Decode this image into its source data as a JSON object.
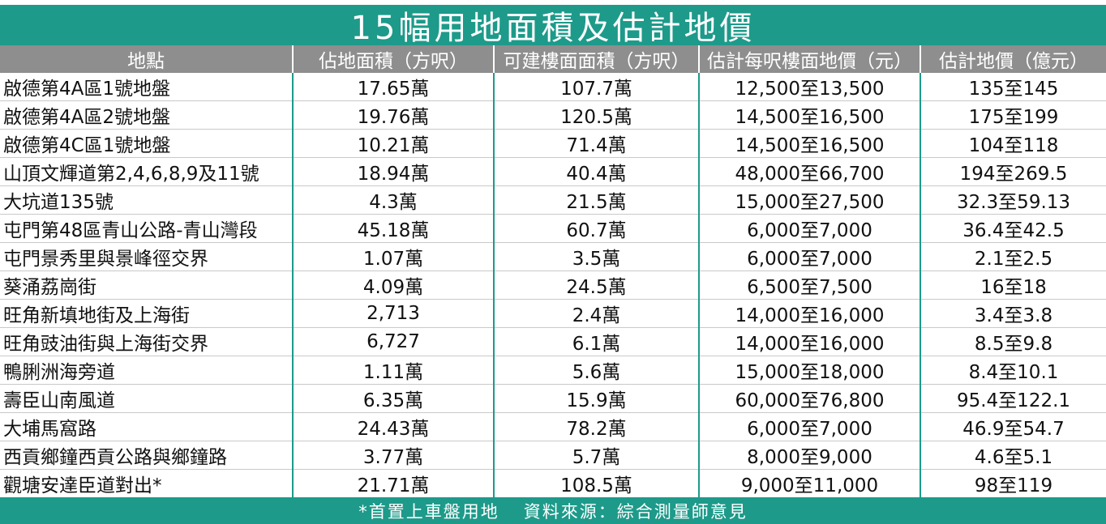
{
  "title": "15幅用地面積及估計地價",
  "headers": [
    "地點",
    "佔地面積（方呎）",
    "可建樓面面積（方呎）",
    "估計每呎樓面地價（元）",
    "估計地價（億元）"
  ],
  "rows": [
    [
      "啟德第4A區1號地盤",
      "17.65萬",
      "107.7萬",
      "12,500至13,500",
      "135至145"
    ],
    [
      "啟德第4A區2號地盤",
      "19.76萬",
      "120.5萬",
      "14,500至16,500",
      "175至199"
    ],
    [
      "啟德第4C區1號地盤",
      "10.21萬",
      "71.4萬",
      "14,500至16,500",
      "104至118"
    ],
    [
      "山頂文輝道第2,4,6,8,9及11號",
      "18.94萬",
      "40.4萬",
      "48,000至66,700",
      "194至269.5"
    ],
    [
      "大坑道135號",
      "4.3萬",
      "21.5萬",
      "15,000至27,500",
      "32.3至59.13"
    ],
    [
      "屯門第48區青山公路-青山灣段",
      "45.18萬",
      "60.7萬",
      "6,000至7,000",
      "36.4至42.5"
    ],
    [
      "屯門景秀里與景峰徑交界",
      "1.07萬",
      "3.5萬",
      "6,000至7,000",
      "2.1至2.5"
    ],
    [
      "葵涌荔崗街",
      "4.09萬",
      "24.5萬",
      "6,500至7,500",
      "16至18"
    ],
    [
      "旺角新填地街及上海街",
      "2,713",
      "2.4萬",
      "14,000至16,000",
      "3.4至3.8"
    ],
    [
      "旺角豉油街與上海街交界",
      "6,727",
      "6.1萬",
      "14,000至16,000",
      "8.5至9.8"
    ],
    [
      "鴨脷洲海旁道",
      "1.11萬",
      "5.6萬",
      "15,000至18,000",
      "8.4至10.1"
    ],
    [
      "壽臣山南風道",
      "6.35萬",
      "15.9萬",
      "60,000至76,800",
      "95.4至122.1"
    ],
    [
      "大埔馬窩路",
      "24.43萬",
      "78.2萬",
      "6,000至7,000",
      "46.9至54.7"
    ],
    [
      "西貢鄉鐘西貢公路與鄉鐘路",
      "3.77萬",
      "5.7萬",
      "8,000至9,000",
      "4.6至5.1"
    ],
    [
      "觀塘安達臣道對出*",
      "21.71萬",
      "108.5萬",
      "9,000至11,000",
      "98至119"
    ]
  ],
  "footer": {
    "note": "*首置上車盤用地",
    "source": "資料來源：綜合測量師意見"
  },
  "colors": {
    "accent": "#1d9a8a",
    "header_bg": "#8e8e8e"
  }
}
